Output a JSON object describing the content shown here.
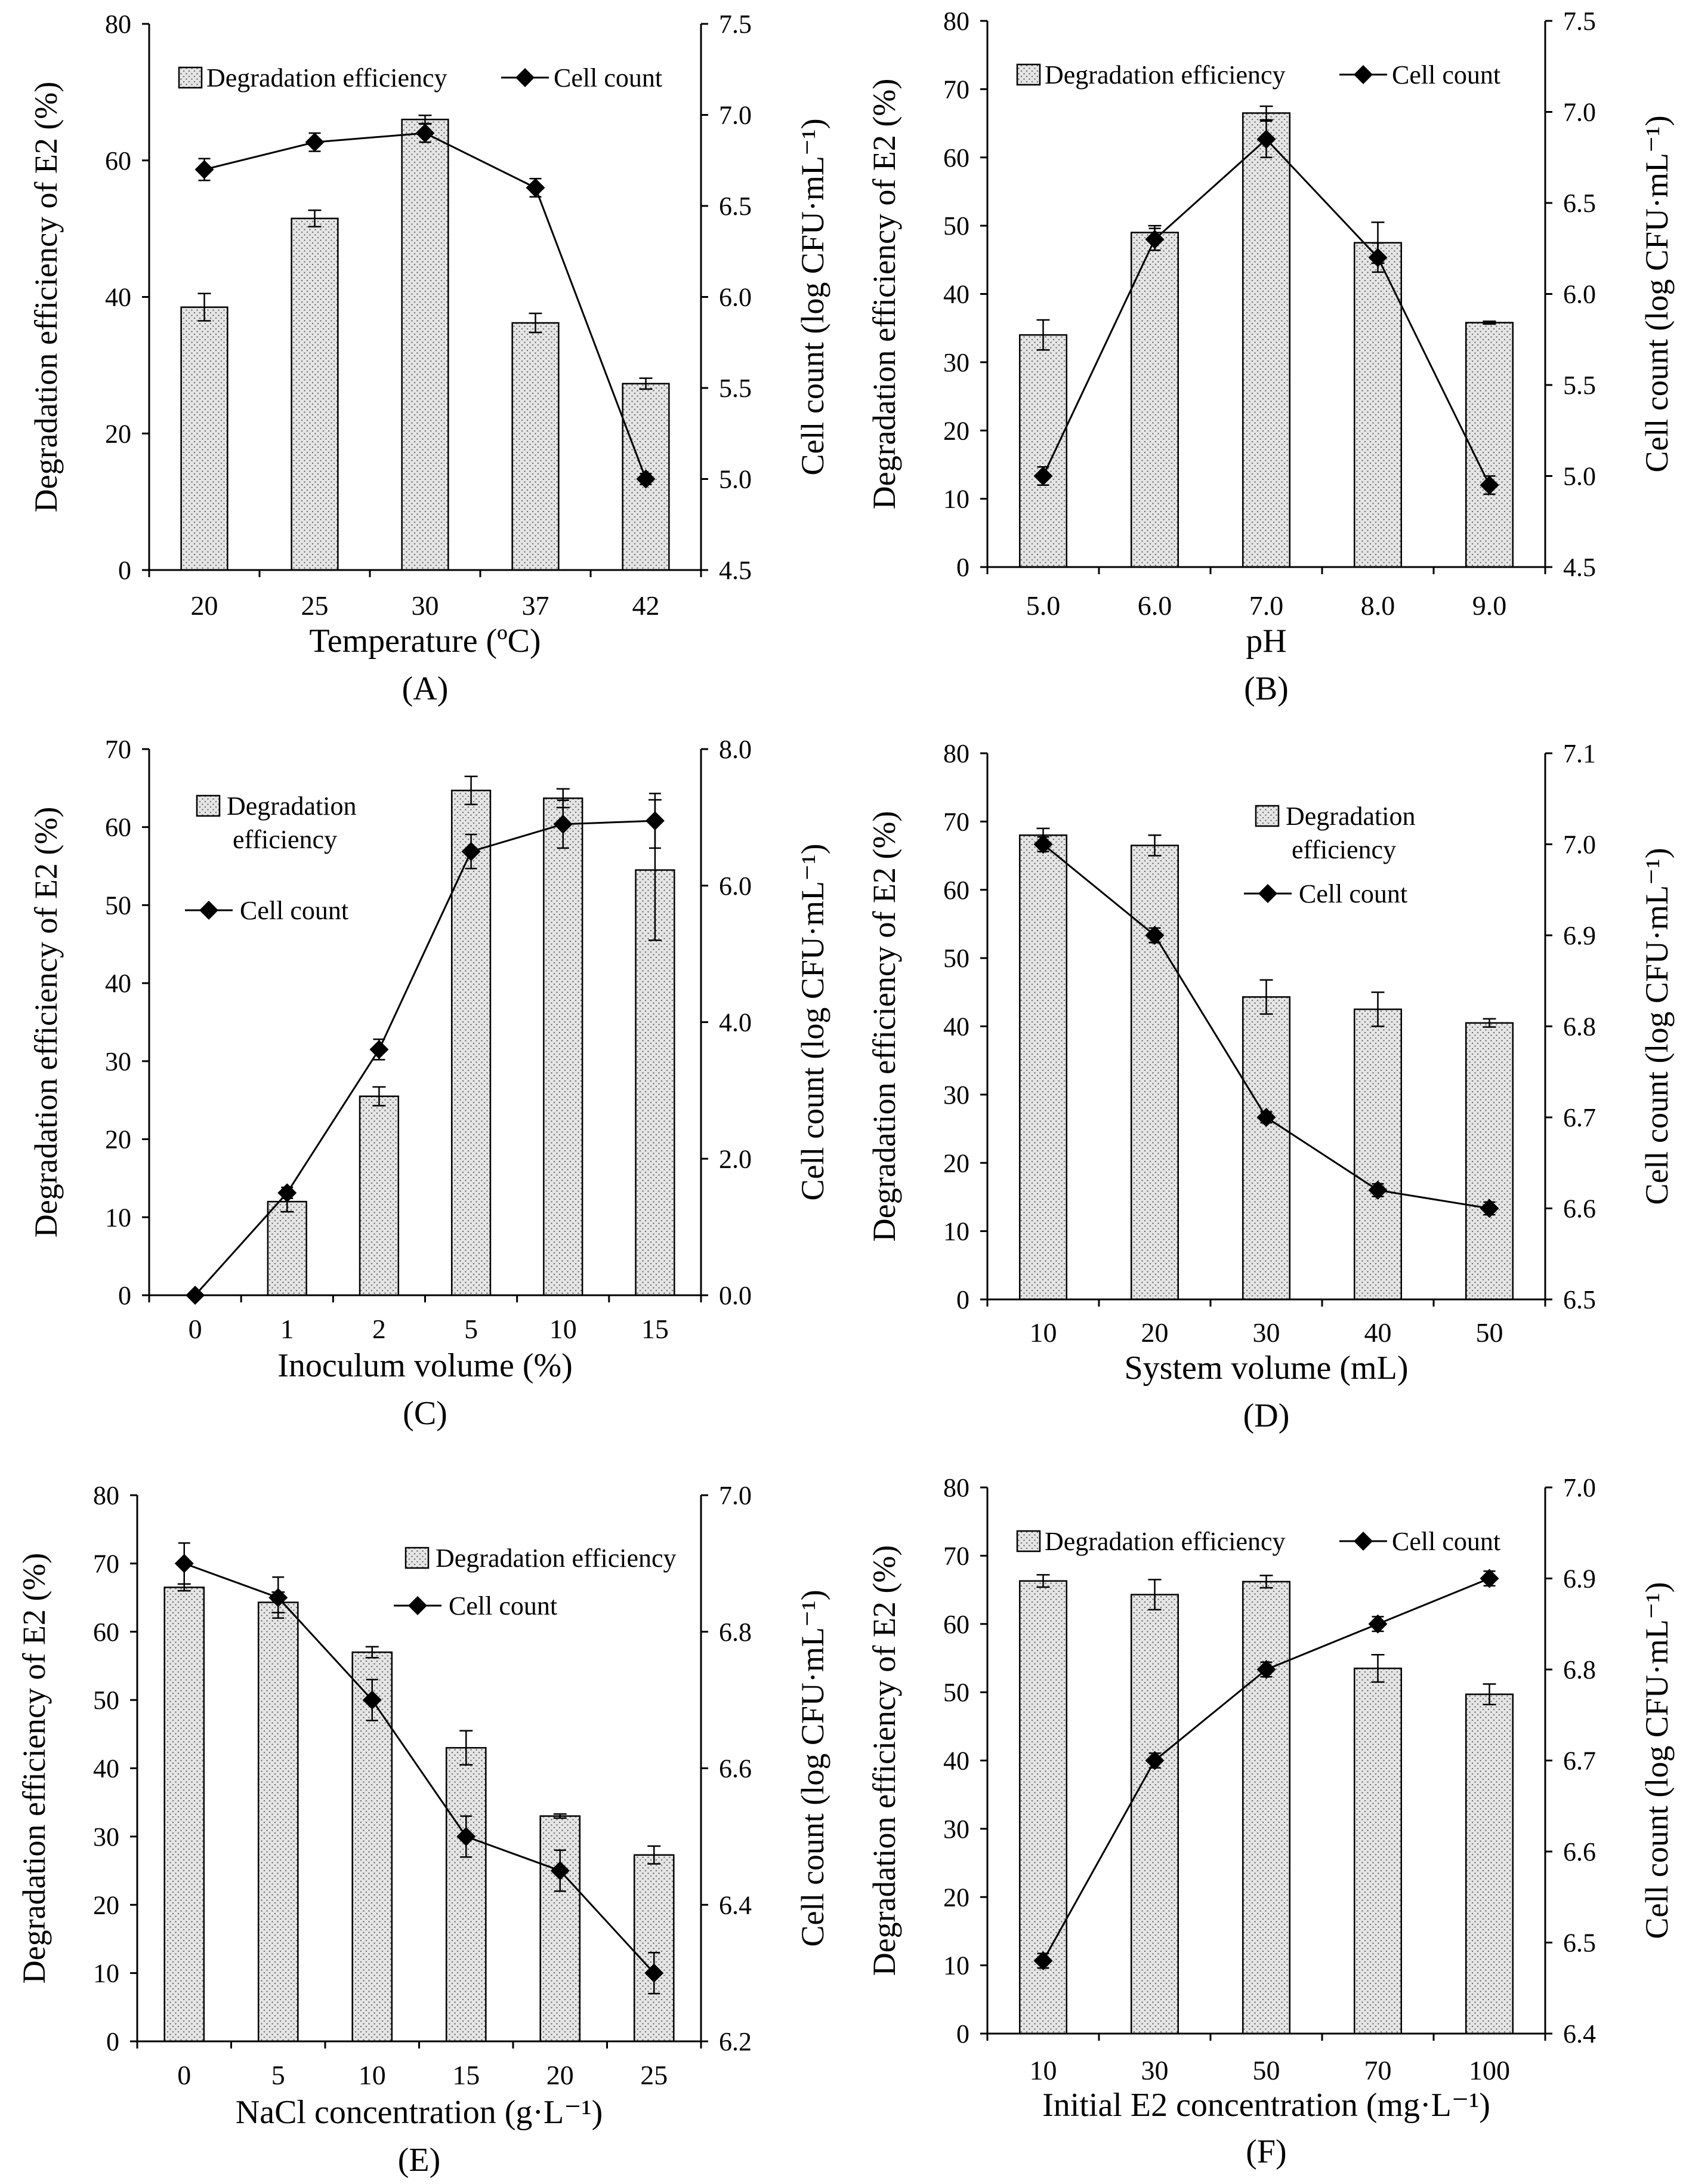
{
  "panels_order": [
    "A",
    "B",
    "C",
    "D",
    "E",
    "F"
  ],
  "legend_labels": {
    "bar": "Degradation efficiency",
    "line": "Cell count"
  },
  "colors": {
    "bar_fill": "#e6e6e6",
    "bar_dots": "#7a7a7a",
    "stroke": "#000000",
    "background": "#ffffff"
  },
  "chart_data": [
    {
      "panel_label": "(A)",
      "type": "bar",
      "categories": [
        "20",
        "25",
        "30",
        "37",
        "42"
      ],
      "xlabel": "Temperature (ºC)",
      "ylabel": "Degradation efficiency of E2 (%)",
      "y2label": "Cell count (log CFU·mL⁻¹)",
      "ylim": [
        0,
        80
      ],
      "yticks": [
        "0",
        "20",
        "40",
        "60",
        "80"
      ],
      "y2lim": [
        4.5,
        7.5
      ],
      "y2ticks": [
        "4.5",
        "5.0",
        "5.5",
        "6.0",
        "6.5",
        "7.0",
        "7.5"
      ],
      "legend_layout": "top-row",
      "series": [
        {
          "name": "Degradation efficiency",
          "kind": "bar",
          "axis": "left",
          "values": [
            38.5,
            51.5,
            66,
            36.2,
            27.3
          ],
          "errors": [
            2.0,
            1.2,
            0.6,
            1.4,
            0.8
          ]
        },
        {
          "name": "Cell count",
          "kind": "line",
          "axis": "right",
          "values": [
            6.7,
            6.85,
            6.9,
            6.6,
            5.0
          ],
          "errors": [
            0.06,
            0.05,
            0.05,
            0.05,
            0.03
          ]
        }
      ]
    },
    {
      "panel_label": "(B)",
      "type": "bar",
      "categories": [
        "5.0",
        "6.0",
        "7.0",
        "8.0",
        "9.0"
      ],
      "xlabel": "pH",
      "ylabel": "Degradation efficiency of E2 (%)",
      "y2label": "Cell count (log CFU·mL⁻¹)",
      "ylim": [
        0,
        80
      ],
      "yticks": [
        "0",
        "10",
        "20",
        "30",
        "40",
        "50",
        "60",
        "70",
        "80"
      ],
      "y2lim": [
        4.5,
        7.5
      ],
      "y2ticks": [
        "4.5",
        "5.0",
        "5.5",
        "6.0",
        "6.5",
        "7.0",
        "7.5"
      ],
      "legend_layout": "top-row",
      "series": [
        {
          "name": "Degradation efficiency",
          "kind": "bar",
          "axis": "left",
          "values": [
            34,
            49,
            66.5,
            47.5,
            35.8
          ],
          "errors": [
            2.2,
            1.0,
            1.0,
            3.0,
            0.2
          ]
        },
        {
          "name": "Cell count",
          "kind": "line",
          "axis": "right",
          "values": [
            5.0,
            6.3,
            6.85,
            6.2,
            4.95
          ],
          "errors": [
            0.05,
            0.06,
            0.1,
            0.08,
            0.05
          ]
        }
      ]
    },
    {
      "panel_label": "(C)",
      "type": "bar",
      "categories": [
        "0",
        "1",
        "2",
        "5",
        "10",
        "15"
      ],
      "xlabel": "Inoculum volume (%)",
      "ylabel": "Degradation efficiency of E2 (%)",
      "y2label": "Cell count (log CFU·mL⁻¹)",
      "ylim": [
        0,
        70
      ],
      "yticks": [
        "0",
        "10",
        "20",
        "30",
        "40",
        "50",
        "60",
        "70"
      ],
      "y2lim": [
        0,
        8
      ],
      "y2ticks": [
        "0.0",
        "2.0",
        "4.0",
        "6.0",
        "8.0"
      ],
      "legend_layout": "stacked-left",
      "series": [
        {
          "name": "Degradation efficiency",
          "kind": "bar",
          "axis": "left",
          "values": [
            0,
            12,
            25.5,
            64.7,
            63.7,
            54.5
          ],
          "errors": [
            0,
            1.3,
            1.2,
            1.8,
            1.2,
            9.0
          ]
        },
        {
          "name": "Cell count",
          "kind": "line",
          "axis": "right",
          "values": [
            0,
            1.5,
            3.6,
            6.5,
            6.9,
            6.95
          ],
          "errors": [
            0,
            0.08,
            0.15,
            0.25,
            0.35,
            0.4
          ]
        }
      ]
    },
    {
      "panel_label": "(D)",
      "type": "bar",
      "categories": [
        "10",
        "20",
        "30",
        "40",
        "50"
      ],
      "xlabel": "System volume (mL)",
      "ylabel": "Degradation efficiency of E2 (%)",
      "y2label": "Cell count (log CFU·mL⁻¹)",
      "ylim": [
        0,
        80
      ],
      "yticks": [
        "0",
        "10",
        "20",
        "30",
        "40",
        "50",
        "60",
        "70",
        "80"
      ],
      "y2lim": [
        6.5,
        7.1
      ],
      "y2ticks": [
        "6.5",
        "6.6",
        "6.7",
        "6.8",
        "6.9",
        "7.0",
        "7.1"
      ],
      "legend_layout": "stacked-right",
      "series": [
        {
          "name": "Degradation efficiency",
          "kind": "bar",
          "axis": "left",
          "values": [
            68,
            66.5,
            44.3,
            42.5,
            40.5
          ],
          "errors": [
            1.0,
            1.5,
            2.5,
            2.5,
            0.6
          ]
        },
        {
          "name": "Cell count",
          "kind": "line",
          "axis": "right",
          "values": [
            7.0,
            6.9,
            6.7,
            6.62,
            6.6
          ],
          "errors": [
            0.008,
            0.008,
            0.006,
            0.007,
            0.007
          ]
        }
      ]
    },
    {
      "panel_label": "(E)",
      "type": "bar",
      "categories": [
        "0",
        "5",
        "10",
        "15",
        "20",
        "25"
      ],
      "xlabel": "NaCl concentration (g·L⁻¹)",
      "ylabel": "Degradation efficiency of E2 (%)",
      "y2label": "Cell count (log CFU·mL⁻¹)",
      "ylim": [
        0,
        80
      ],
      "yticks": [
        "0",
        "10",
        "20",
        "30",
        "40",
        "50",
        "60",
        "70",
        "80"
      ],
      "y2lim": [
        6.2,
        7.0
      ],
      "y2ticks": [
        "6.2",
        "6.4",
        "6.6",
        "6.8",
        "7.0"
      ],
      "legend_layout": "stacked-right",
      "series": [
        {
          "name": "Degradation efficiency",
          "kind": "bar",
          "axis": "left",
          "values": [
            66.5,
            64.3,
            57,
            43,
            33,
            27.3
          ],
          "errors": [
            0.5,
            1.5,
            0.8,
            2.5,
            0.3,
            1.3
          ]
        },
        {
          "name": "Cell count",
          "kind": "line",
          "axis": "right",
          "values": [
            6.9,
            6.85,
            6.7,
            6.5,
            6.45,
            6.3
          ],
          "errors": [
            0.03,
            0.03,
            0.03,
            0.03,
            0.03,
            0.03
          ]
        }
      ]
    },
    {
      "panel_label": "(F)",
      "type": "bar",
      "categories": [
        "10",
        "30",
        "50",
        "70",
        "100"
      ],
      "xlabel": "Initial E2 concentration (mg·L⁻¹)",
      "ylabel": "Degradation efficiency of E2 (%)",
      "y2label": "Cell count (log CFU·mL⁻¹)",
      "ylim": [
        0,
        80
      ],
      "yticks": [
        "0",
        "10",
        "20",
        "30",
        "40",
        "50",
        "60",
        "70",
        "80"
      ],
      "y2lim": [
        6.4,
        7.0
      ],
      "y2ticks": [
        "6.4",
        "6.5",
        "6.6",
        "6.7",
        "6.8",
        "6.9",
        "7.0"
      ],
      "legend_layout": "top-row",
      "series": [
        {
          "name": "Degradation efficiency",
          "kind": "bar",
          "axis": "left",
          "values": [
            66.3,
            64.3,
            66.2,
            53.5,
            49.7
          ],
          "errors": [
            0.9,
            2.2,
            0.9,
            2.0,
            1.5
          ]
        },
        {
          "name": "Cell count",
          "kind": "line",
          "axis": "right",
          "values": [
            6.48,
            6.7,
            6.8,
            6.85,
            6.9
          ],
          "errors": [
            0.008,
            0.008,
            0.008,
            0.008,
            0.008
          ]
        }
      ]
    }
  ]
}
